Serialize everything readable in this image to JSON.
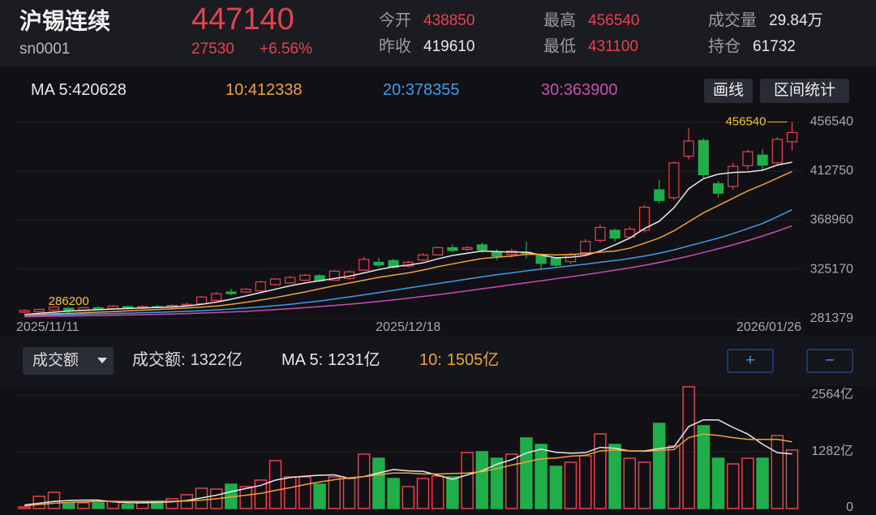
{
  "header": {
    "title": "沪锡连续",
    "code": "sn0001",
    "price": 447140,
    "change": 27530,
    "change_pct": "+6.56%",
    "stats": [
      {
        "label": "今开",
        "value": 438850,
        "color": "#e5424f"
      },
      {
        "label": "昨收",
        "value": 419610,
        "color": "#e8e8e8"
      },
      {
        "label": "最高",
        "value": 456540,
        "color": "#e5424f"
      },
      {
        "label": "最低",
        "value": 431100,
        "color": "#e5424f"
      },
      {
        "label": "成交量",
        "value": "29.84万",
        "color": "#e8e8e8"
      },
      {
        "label": "持仓",
        "value": 61732,
        "color": "#e8e8e8"
      }
    ]
  },
  "toolbar": {
    "buttons": [
      "画线",
      "区间统计"
    ]
  },
  "volume_toolbar": {
    "selector": "成交额",
    "buttons": [
      "+",
      "−"
    ]
  },
  "chart_data": [
    {
      "type": "candlestick",
      "up_color": "#e5424f",
      "down_color": "#1fae4a",
      "grid": true,
      "categories": [
        "2025/11/11",
        null,
        null,
        null,
        null,
        null,
        null,
        null,
        null,
        null,
        null,
        null,
        null,
        null,
        null,
        null,
        null,
        null,
        null,
        null,
        null,
        null,
        null,
        null,
        null,
        null,
        "2025/12/18",
        null,
        null,
        null,
        null,
        null,
        null,
        null,
        null,
        null,
        null,
        null,
        null,
        null,
        null,
        null,
        null,
        null,
        null,
        null,
        null,
        null,
        null,
        null,
        null,
        null,
        "2026/01/26"
      ],
      "open": [
        287000,
        287500,
        289000,
        290500,
        289000,
        291000,
        290000,
        292000,
        291000,
        292000,
        291500,
        293000,
        294500,
        297500,
        305000,
        305000,
        306000,
        311500,
        313000,
        315500,
        319500,
        315500,
        317000,
        324500,
        331500,
        333000,
        328000,
        333500,
        338000,
        344500,
        343000,
        347000,
        340500,
        338500,
        340500,
        337500,
        335000,
        332000,
        340000,
        351000,
        360000,
        354000,
        360000,
        396000,
        389000,
        426000,
        440000,
        401500,
        399000,
        417500,
        427000,
        420000,
        438850
      ],
      "high": [
        289500,
        290000,
        292500,
        291500,
        292000,
        292500,
        293500,
        293000,
        293000,
        293500,
        294000,
        295500,
        301500,
        305000,
        308000,
        308500,
        315000,
        317500,
        319500,
        321000,
        321000,
        324500,
        324000,
        336500,
        335500,
        334500,
        333000,
        339500,
        345500,
        347500,
        346000,
        349000,
        343000,
        343500,
        350000,
        339000,
        336000,
        340000,
        352000,
        365000,
        361500,
        363500,
        382500,
        405000,
        421500,
        451000,
        442000,
        404000,
        420000,
        432000,
        432500,
        443000,
        456540
      ],
      "low": [
        286500,
        286800,
        288000,
        286200,
        288000,
        289000,
        289500,
        290000,
        290000,
        290500,
        290500,
        292000,
        294000,
        297000,
        302000,
        304000,
        305500,
        310500,
        312500,
        314500,
        314000,
        315000,
        316000,
        324000,
        327000,
        325500,
        327000,
        332500,
        337500,
        340500,
        341500,
        340000,
        333500,
        336000,
        335000,
        324500,
        327000,
        330000,
        338000,
        349000,
        350000,
        352000,
        358000,
        384000,
        387000,
        423000,
        407000,
        389000,
        396000,
        414000,
        413000,
        418500,
        431100
      ],
      "close": [
        288500,
        289500,
        291500,
        288500,
        291000,
        290000,
        292500,
        291000,
        292000,
        291500,
        293000,
        294000,
        300500,
        303500,
        303500,
        307500,
        314000,
        316500,
        318000,
        320000,
        315000,
        323500,
        323000,
        334000,
        329000,
        327000,
        331500,
        338000,
        344500,
        342000,
        344500,
        342500,
        337000,
        341500,
        339500,
        330500,
        329000,
        338000,
        350000,
        362500,
        353000,
        361000,
        380500,
        386500,
        420000,
        439500,
        409500,
        393000,
        417000,
        430000,
        418000,
        441000,
        447140
      ],
      "ylim": [
        279000,
        464000
      ],
      "yticks": [
        281379,
        325170,
        368960,
        412750,
        456540
      ],
      "lines": [
        {
          "name": "MA 5:",
          "last": 420628,
          "color": "#e8e8e8",
          "values": [
            285000,
            286000,
            287000,
            288000,
            288600,
            289200,
            289800,
            290300,
            290700,
            291200,
            291700,
            292500,
            294000,
            296000,
            298500,
            301500,
            304500,
            307500,
            310500,
            313000,
            315000,
            317000,
            319000,
            322000,
            325000,
            327500,
            329000,
            331000,
            334500,
            337500,
            339500,
            341500,
            341000,
            340500,
            340500,
            338000,
            335500,
            336000,
            337500,
            341500,
            347000,
            353000,
            361500,
            368000,
            380000,
            397000,
            406000,
            410000,
            411500,
            412000,
            413500,
            418000,
            420628
          ]
        },
        {
          "name": "10:",
          "last": 412338,
          "color": "#f0a23a",
          "values": [
            284500,
            285000,
            285500,
            286000,
            286500,
            287000,
            287500,
            288200,
            288800,
            289400,
            290000,
            290700,
            291500,
            292500,
            294000,
            295800,
            297800,
            300000,
            302500,
            305000,
            307800,
            310500,
            313000,
            315500,
            318000,
            320000,
            322000,
            324500,
            327500,
            330000,
            332500,
            334800,
            336000,
            337000,
            338500,
            338500,
            338000,
            338500,
            339200,
            340500,
            341500,
            344000,
            348500,
            353000,
            359500,
            367500,
            375500,
            382000,
            388500,
            395000,
            400500,
            406500,
            412338
          ]
        },
        {
          "name": "20:",
          "last": 378355,
          "color": "#3f9ce8",
          "values": [
            284000,
            284300,
            284600,
            284900,
            285200,
            285500,
            285800,
            286100,
            286500,
            286900,
            287300,
            287800,
            288300,
            289000,
            289800,
            290700,
            291700,
            292800,
            294000,
            295500,
            297000,
            298800,
            300600,
            302500,
            304500,
            306500,
            308500,
            310500,
            312500,
            314500,
            316500,
            318500,
            320500,
            322000,
            323800,
            325300,
            326800,
            328300,
            329800,
            331500,
            333000,
            334800,
            337000,
            339500,
            342500,
            346000,
            349500,
            353000,
            357000,
            361500,
            366000,
            372000,
            378355
          ]
        },
        {
          "name": "30:",
          "last": 363900,
          "color": "#c54fb5",
          "values": [
            283000,
            283200,
            283400,
            283600,
            283800,
            284000,
            284200,
            284500,
            284800,
            285100,
            285400,
            285800,
            286200,
            286700,
            287200,
            287800,
            288500,
            289300,
            290100,
            291000,
            292000,
            293000,
            294100,
            295300,
            296600,
            298000,
            299500,
            301000,
            302600,
            304300,
            306000,
            307800,
            309600,
            311400,
            313200,
            315000,
            316800,
            318600,
            320500,
            322400,
            324400,
            326500,
            328800,
            331300,
            334000,
            337000,
            340200,
            343500,
            347000,
            350800,
            354800,
            359200,
            363900
          ]
        }
      ]
    },
    {
      "type": "bar",
      "legend": {
        "label": "成交额:",
        "current": "1322亿"
      },
      "values": [
        37,
        275,
        366,
        128,
        128,
        128,
        165,
        92,
        128,
        165,
        220,
        311,
        458,
        439,
        549,
        494,
        641,
        1080,
        714,
        714,
        549,
        714,
        677,
        1227,
        1135,
        677,
        494,
        677,
        732,
        714,
        1263,
        1282,
        1135,
        1227,
        1593,
        1446,
        952,
        1044,
        1190,
        1684,
        1446,
        1135,
        1044,
        1922,
        1410,
        2747,
        1868,
        1135,
        1007,
        1135,
        1135,
        1648,
        1322
      ],
      "ylim": [
        0,
        2800
      ],
      "yticks": [
        {
          "value": 2564,
          "label": "2564亿"
        },
        {
          "value": 1282,
          "label": "1282亿"
        },
        0
      ],
      "lines": [
        {
          "name": "MA 5:",
          "last": "1231亿",
          "color": "#e8e8e8",
          "values": [
            80,
            120,
            160,
            180,
            190,
            190,
            150,
            130,
            130,
            140,
            150,
            180,
            240,
            300,
            380,
            450,
            520,
            640,
            700,
            730,
            750,
            760,
            680,
            720,
            800,
            880,
            850,
            840,
            750,
            660,
            760,
            850,
            1000,
            1100,
            1250,
            1340,
            1270,
            1250,
            1260,
            1380,
            1360,
            1300,
            1300,
            1350,
            1390,
            1850,
            2000,
            2000,
            1830,
            1680,
            1450,
            1260,
            1231
          ]
        },
        {
          "name": "10:",
          "last": "1505亿",
          "color": "#f0a23a",
          "values": [
            60,
            90,
            120,
            140,
            150,
            160,
            160,
            160,
            160,
            160,
            165,
            170,
            190,
            220,
            260,
            300,
            340,
            410,
            470,
            540,
            600,
            650,
            690,
            720,
            760,
            800,
            800,
            780,
            780,
            790,
            800,
            830,
            900,
            980,
            1050,
            1120,
            1140,
            1180,
            1200,
            1300,
            1320,
            1300,
            1290,
            1310,
            1330,
            1600,
            1680,
            1650,
            1600,
            1560,
            1560,
            1560,
            1505
          ]
        }
      ]
    }
  ]
}
